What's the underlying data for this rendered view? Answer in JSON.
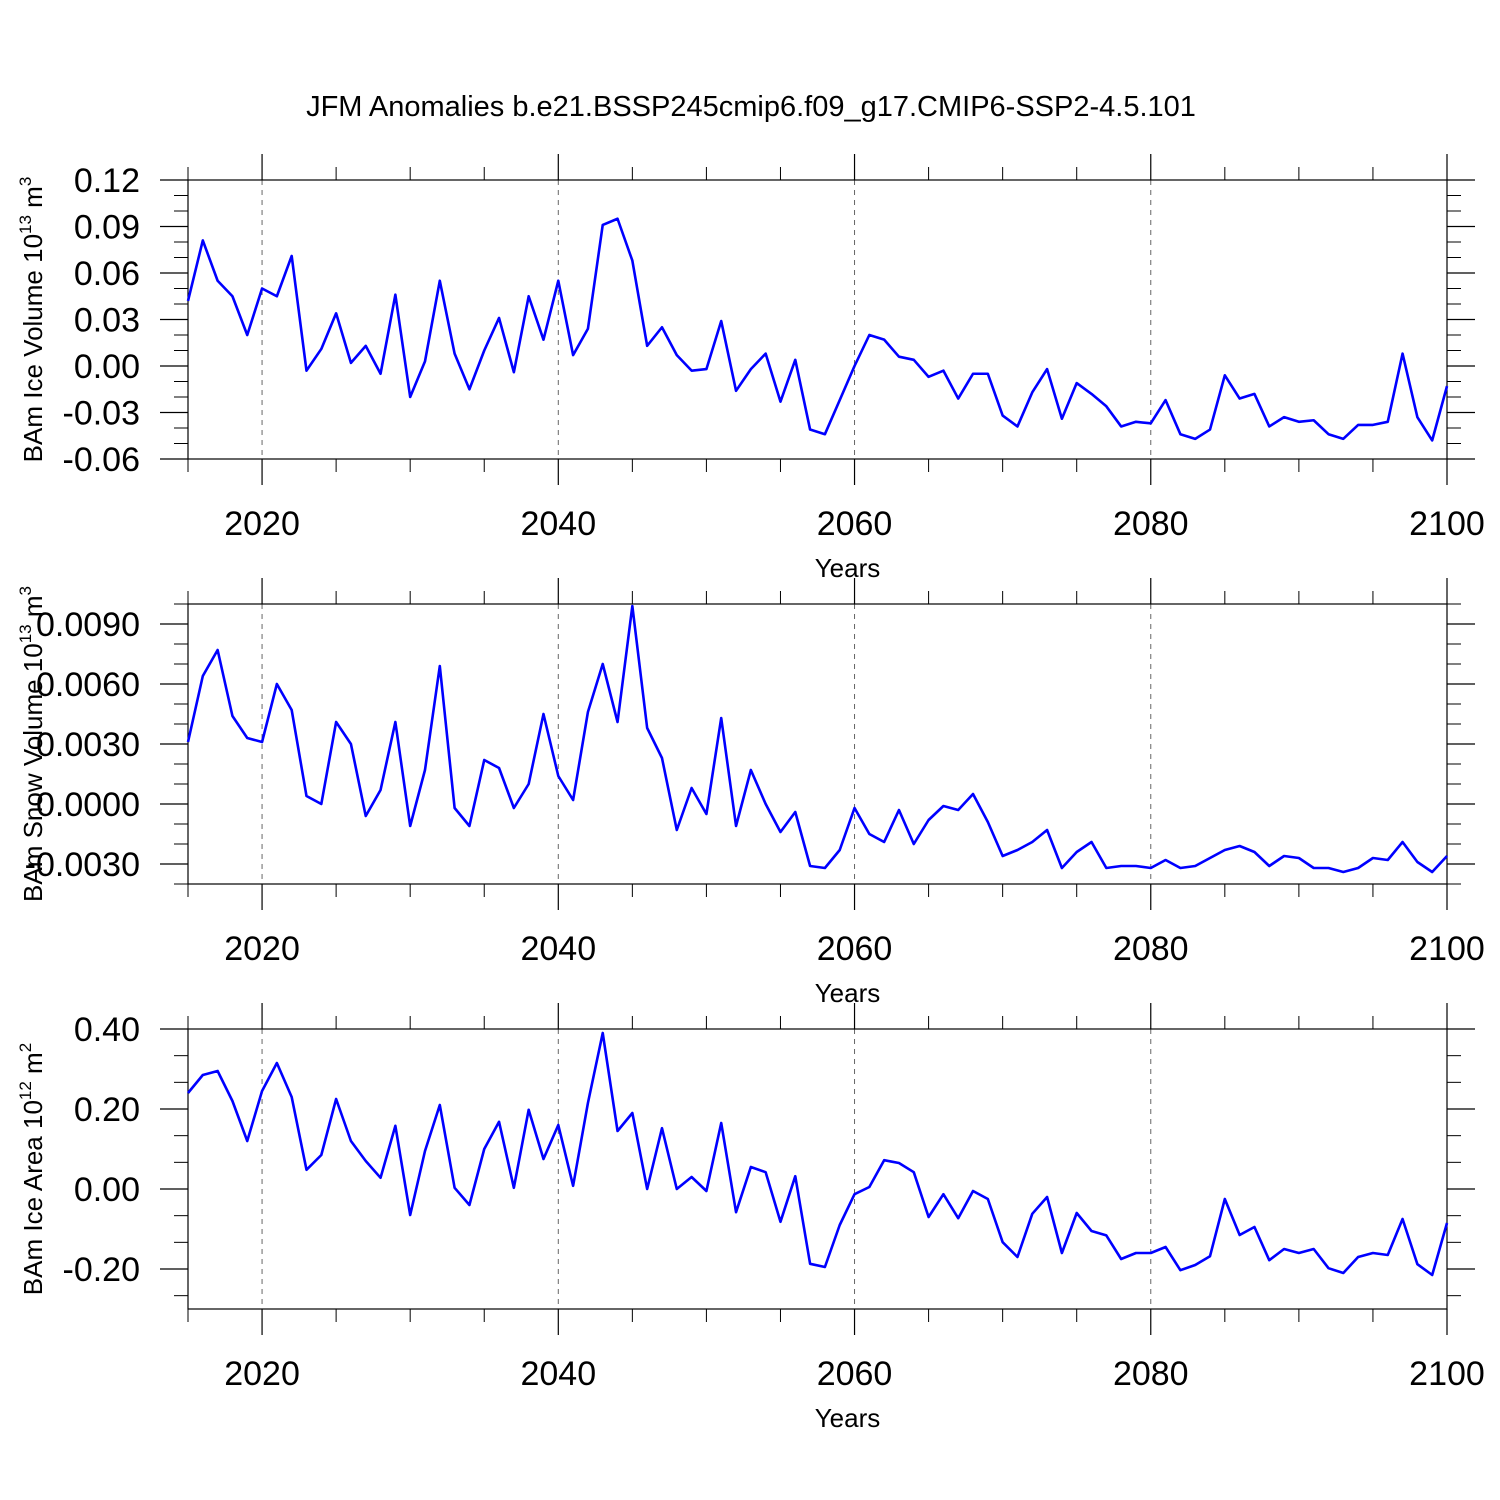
{
  "chart_data": [
    {
      "type": "line",
      "title": "JFM Anomalies b.e21.BSSP245cmip6.f09_g17.CMIP6-SSP2-4.5.101",
      "xlabel": "Years",
      "ylabel": "BAm Ice Volume 10",
      "ylabel_exp": "13",
      "ylabel_unit": " m",
      "ylabel_unit_exp": "3",
      "xlim": [
        2015,
        2100
      ],
      "ylim": [
        -0.06,
        0.12
      ],
      "yticks": [
        -0.06,
        -0.03,
        0.0,
        0.03,
        0.06,
        0.09,
        0.12
      ],
      "ytick_labels": [
        "-0.06",
        "-0.03",
        "0.00",
        "0.03",
        "0.06",
        "0.09",
        "0.12"
      ],
      "xticks": [
        2020,
        2040,
        2060,
        2080,
        2100
      ],
      "xtick_labels": [
        "2020",
        "2040",
        "2060",
        "2080",
        "2100"
      ],
      "series": [
        {
          "name": "BAm Ice Volume",
          "color": "#0000ff",
          "x_start": 2015,
          "values": [
            0.042,
            0.081,
            0.055,
            0.045,
            0.02,
            0.05,
            0.045,
            0.071,
            -0.003,
            0.011,
            0.034,
            0.002,
            0.013,
            -0.005,
            0.046,
            -0.02,
            0.003,
            0.055,
            0.008,
            -0.015,
            0.01,
            0.031,
            -0.004,
            0.045,
            0.017,
            0.055,
            0.007,
            0.024,
            0.091,
            0.095,
            0.068,
            0.013,
            0.025,
            0.007,
            -0.003,
            -0.002,
            0.029,
            -0.016,
            -0.002,
            0.008,
            -0.023,
            0.004,
            -0.041,
            -0.044,
            -0.022,
            0.0,
            0.02,
            0.017,
            0.006,
            0.004,
            -0.007,
            -0.003,
            -0.021,
            -0.005,
            -0.005,
            -0.032,
            -0.039,
            -0.017,
            -0.002,
            -0.034,
            -0.011,
            -0.018,
            -0.026,
            -0.039,
            -0.036,
            -0.037,
            -0.022,
            -0.044,
            -0.047,
            -0.041,
            -0.006,
            -0.021,
            -0.018,
            -0.039,
            -0.033,
            -0.036,
            -0.035,
            -0.044,
            -0.047,
            -0.038,
            -0.038,
            -0.036,
            0.008,
            -0.033,
            -0.048,
            -0.013
          ]
        }
      ]
    },
    {
      "type": "line",
      "xlabel": "Years",
      "ylabel": "BAm Snow Volume 10",
      "ylabel_exp": "13",
      "ylabel_unit": " m",
      "ylabel_unit_exp": "3",
      "xlim": [
        2015,
        2100
      ],
      "ylim": [
        -0.004,
        0.01
      ],
      "yticks": [
        -0.003,
        0.0,
        0.003,
        0.006,
        0.009
      ],
      "ytick_labels": [
        "-0.0030",
        "0.0000",
        "0.0030",
        "0.0060",
        "0.0090"
      ],
      "xticks": [
        2020,
        2040,
        2060,
        2080,
        2100
      ],
      "xtick_labels": [
        "2020",
        "2040",
        "2060",
        "2080",
        "2100"
      ],
      "series": [
        {
          "name": "BAm Snow Volume",
          "color": "#0000ff",
          "x_start": 2015,
          "values": [
            0.0031,
            0.0064,
            0.0077,
            0.0044,
            0.0033,
            0.0031,
            0.006,
            0.0047,
            0.0004,
            0.0,
            0.0041,
            0.003,
            -0.0006,
            0.0007,
            0.0041,
            -0.0011,
            0.0017,
            0.0069,
            -0.0002,
            -0.0011,
            0.0022,
            0.0018,
            -0.0002,
            0.001,
            0.0045,
            0.0014,
            0.0002,
            0.0046,
            0.007,
            0.0041,
            0.0099,
            0.0038,
            0.0023,
            -0.0013,
            0.0008,
            -0.0005,
            0.0043,
            -0.0011,
            0.0017,
            0.0,
            -0.0014,
            -0.0004,
            -0.0031,
            -0.0032,
            -0.0023,
            -0.0002,
            -0.0015,
            -0.0019,
            -0.0003,
            -0.002,
            -0.0008,
            -0.0001,
            -0.0003,
            0.0005,
            -0.0009,
            -0.0026,
            -0.0023,
            -0.0019,
            -0.0013,
            -0.0032,
            -0.0024,
            -0.0019,
            -0.0032,
            -0.0031,
            -0.0031,
            -0.0032,
            -0.0028,
            -0.0032,
            -0.0031,
            -0.0027,
            -0.0023,
            -0.0021,
            -0.0024,
            -0.0031,
            -0.0026,
            -0.0027,
            -0.0032,
            -0.0032,
            -0.0034,
            -0.0032,
            -0.0027,
            -0.0028,
            -0.0019,
            -0.0029,
            -0.0034,
            -0.0026
          ]
        }
      ]
    },
    {
      "type": "line",
      "xlabel": "Years",
      "ylabel": "BAm Ice Area 10",
      "ylabel_exp": "12",
      "ylabel_unit": " m",
      "ylabel_unit_exp": "2",
      "xlim": [
        2015,
        2100
      ],
      "ylim": [
        -0.3,
        0.4
      ],
      "yticks": [
        -0.2,
        0.0,
        0.2,
        0.4
      ],
      "ytick_labels": [
        "-0.20",
        "0.00",
        "0.20",
        "0.40"
      ],
      "xticks": [
        2020,
        2040,
        2060,
        2080,
        2100
      ],
      "xtick_labels": [
        "2020",
        "2040",
        "2060",
        "2080",
        "2100"
      ],
      "series": [
        {
          "name": "BAm Ice Area",
          "color": "#0000ff",
          "x_start": 2015,
          "values": [
            0.24,
            0.285,
            0.295,
            0.22,
            0.12,
            0.245,
            0.315,
            0.23,
            0.048,
            0.085,
            0.225,
            0.12,
            0.07,
            0.028,
            0.158,
            -0.065,
            0.095,
            0.21,
            0.003,
            -0.04,
            0.1,
            0.168,
            0.003,
            0.198,
            0.075,
            0.16,
            0.008,
            0.215,
            0.39,
            0.145,
            0.19,
            0.0,
            0.152,
            0.0,
            0.03,
            -0.005,
            0.165,
            -0.058,
            0.055,
            0.042,
            -0.082,
            0.032,
            -0.187,
            -0.195,
            -0.09,
            -0.013,
            0.005,
            0.072,
            0.065,
            0.042,
            -0.07,
            -0.013,
            -0.073,
            -0.005,
            -0.025,
            -0.133,
            -0.17,
            -0.062,
            -0.02,
            -0.16,
            -0.06,
            -0.105,
            -0.116,
            -0.175,
            -0.16,
            -0.16,
            -0.145,
            -0.203,
            -0.19,
            -0.168,
            -0.025,
            -0.115,
            -0.095,
            -0.178,
            -0.15,
            -0.16,
            -0.15,
            -0.198,
            -0.21,
            -0.17,
            -0.16,
            -0.165,
            -0.075,
            -0.188,
            -0.215,
            -0.085
          ]
        }
      ]
    }
  ]
}
